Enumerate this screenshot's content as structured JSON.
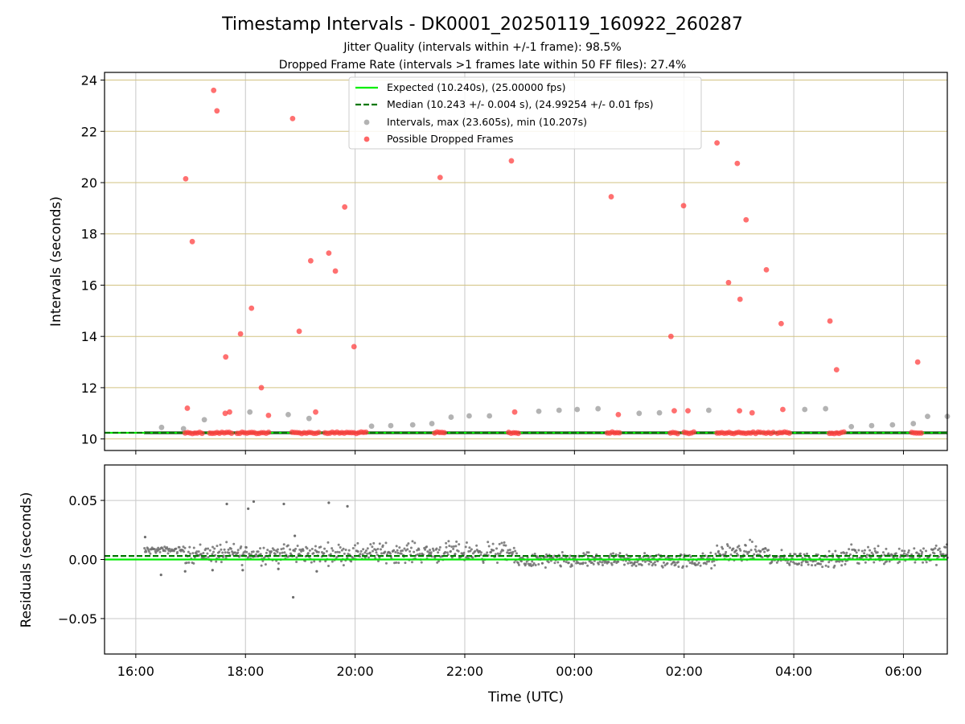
{
  "chart_data": [
    {
      "type": "scatter",
      "title": "Timestamp Intervals - DK0001_20250119_160922_260287",
      "subtitle_lines": [
        "Jitter Quality (intervals within +/-1 frame): 98.5%",
        "Dropped Frame Rate (intervals >1 frames late within 50 FF files): 27.4%"
      ],
      "ylabel": "Intervals (seconds)",
      "ylim": [
        9.55,
        24.3
      ],
      "yticks": [
        "10",
        "12",
        "14",
        "16",
        "18",
        "20",
        "22",
        "24"
      ],
      "ytick_values": [
        10,
        12,
        14,
        16,
        18,
        20,
        22,
        24
      ],
      "xlim_hours": [
        15.43,
        30.8
      ],
      "legend": {
        "placement": "top-center",
        "entries": [
          "Expected (10.240s), (25.00000 fps)",
          "Median (10.243 +/- 0.004 s), (24.99254 +/- 0.01 fps)",
          "Intervals, max (23.605s), min (10.207s)",
          "Possible Dropped Frames"
        ]
      },
      "colors": {
        "expected": "#00ee00",
        "median": "#007700",
        "intervals": "#a0a0a0",
        "dropped": "#ff4040",
        "hgrid": "#d2c382",
        "vgrid": "#c8c8c8",
        "band": "#4d4d4d"
      },
      "expected": 10.24,
      "median": 10.243,
      "series": [
        {
          "name": "Possible Dropped Frames",
          "points": [
            [
              16.91,
              20.15
            ],
            [
              16.94,
              11.2
            ],
            [
              17.03,
              17.7
            ],
            [
              17.42,
              23.6
            ],
            [
              17.48,
              22.8
            ],
            [
              17.64,
              13.2
            ],
            [
              17.63,
              11.0
            ],
            [
              17.71,
              11.05
            ],
            [
              17.91,
              14.1
            ],
            [
              18.11,
              15.1
            ],
            [
              18.29,
              12.0
            ],
            [
              18.42,
              10.92
            ],
            [
              18.86,
              22.5
            ],
            [
              18.98,
              14.2
            ],
            [
              19.19,
              16.95
            ],
            [
              19.28,
              11.05
            ],
            [
              19.52,
              17.25
            ],
            [
              19.64,
              16.55
            ],
            [
              19.81,
              19.05
            ],
            [
              19.98,
              13.6
            ],
            [
              21.55,
              20.2
            ],
            [
              22.85,
              20.85
            ],
            [
              22.91,
              11.05
            ],
            [
              24.67,
              19.45
            ],
            [
              24.8,
              10.95
            ],
            [
              25.76,
              14.0
            ],
            [
              25.82,
              11.1
            ],
            [
              25.99,
              19.1
            ],
            [
              26.07,
              11.1
            ],
            [
              26.6,
              21.55
            ],
            [
              26.81,
              16.1
            ],
            [
              26.97,
              20.75
            ],
            [
              27.02,
              15.45
            ],
            [
              27.01,
              11.1
            ],
            [
              27.13,
              18.55
            ],
            [
              27.24,
              11.02
            ],
            [
              27.5,
              16.6
            ],
            [
              27.77,
              14.5
            ],
            [
              27.8,
              11.15
            ],
            [
              28.66,
              14.6
            ],
            [
              28.78,
              12.7
            ],
            [
              30.26,
              13.0
            ]
          ],
          "clusters_at": 10.24,
          "cluster_hour_ranges": [
            [
              16.9,
              17.25
            ],
            [
              17.35,
              17.75
            ],
            [
              17.85,
              18.45
            ],
            [
              18.85,
              19.35
            ],
            [
              19.45,
              20.2
            ],
            [
              21.45,
              21.65
            ],
            [
              22.8,
              23.0
            ],
            [
              24.6,
              24.85
            ],
            [
              25.75,
              25.9
            ],
            [
              26.0,
              26.2
            ],
            [
              26.6,
              27.4
            ],
            [
              27.45,
              27.65
            ],
            [
              27.7,
              27.95
            ],
            [
              28.65,
              28.95
            ],
            [
              30.15,
              30.35
            ]
          ]
        },
        {
          "name": "Intervals, max (23.605s), min (10.207s)",
          "points": [
            [
              16.47,
              10.45
            ],
            [
              16.87,
              10.4
            ],
            [
              17.25,
              10.75
            ],
            [
              18.08,
              11.05
            ],
            [
              18.78,
              10.95
            ],
            [
              19.16,
              10.8
            ],
            [
              20.3,
              10.5
            ],
            [
              20.65,
              10.52
            ],
            [
              21.05,
              10.55
            ],
            [
              21.4,
              10.6
            ],
            [
              21.75,
              10.85
            ],
            [
              22.08,
              10.9
            ],
            [
              22.45,
              10.9
            ],
            [
              23.35,
              11.08
            ],
            [
              23.72,
              11.12
            ],
            [
              24.05,
              11.15
            ],
            [
              24.43,
              11.18
            ],
            [
              25.18,
              11.0
            ],
            [
              25.55,
              11.02
            ],
            [
              26.45,
              11.12
            ],
            [
              28.2,
              11.15
            ],
            [
              28.58,
              11.18
            ],
            [
              29.05,
              10.48
            ],
            [
              29.42,
              10.52
            ],
            [
              29.8,
              10.55
            ],
            [
              30.18,
              10.6
            ],
            [
              30.44,
              10.88
            ],
            [
              30.8,
              10.88
            ]
          ]
        }
      ]
    },
    {
      "type": "scatter",
      "ylabel": "Residuals (seconds)",
      "xlabel": "Time (UTC)",
      "ylim": [
        -0.08,
        0.08
      ],
      "yticks": [
        "0.05",
        "0.00",
        "−0.05"
      ],
      "ytick_values": [
        0.05,
        0.0,
        -0.05
      ],
      "xticks": [
        "16:00",
        "18:00",
        "20:00",
        "22:00",
        "00:00",
        "02:00",
        "04:00",
        "06:00"
      ],
      "xtick_hours": [
        16,
        18,
        20,
        22,
        24,
        26,
        28,
        30
      ],
      "expected": 0.0,
      "median": 0.003,
      "outliers": [
        [
          16.17,
          0.019
        ],
        [
          16.46,
          -0.013
        ],
        [
          17.66,
          0.047
        ],
        [
          18.05,
          0.043
        ],
        [
          18.15,
          0.049
        ],
        [
          18.7,
          0.047
        ],
        [
          18.9,
          0.02
        ],
        [
          19.52,
          0.048
        ],
        [
          19.86,
          0.045
        ],
        [
          18.87,
          -0.032
        ],
        [
          17.4,
          -0.009
        ],
        [
          18.6,
          -0.008
        ],
        [
          19.3,
          -0.01
        ],
        [
          16.9,
          -0.01
        ],
        [
          17.95,
          -0.009
        ]
      ],
      "segments": [
        {
          "hours": [
            16.15,
            16.9
          ],
          "center": 0.008,
          "spread": 0.003
        },
        {
          "hours": [
            16.9,
            20.0
          ],
          "center": 0.005,
          "spread": 0.009
        },
        {
          "hours": [
            20.0,
            22.9
          ],
          "center": 0.006,
          "spread": 0.009
        },
        {
          "hours": [
            22.9,
            26.6
          ],
          "center": -0.001,
          "spread": 0.007
        },
        {
          "hours": [
            26.6,
            27.55
          ],
          "center": 0.006,
          "spread": 0.009
        },
        {
          "hours": [
            27.55,
            28.95
          ],
          "center": 0.0,
          "spread": 0.007
        },
        {
          "hours": [
            28.95,
            30.8
          ],
          "center": 0.004,
          "spread": 0.009
        }
      ]
    }
  ]
}
